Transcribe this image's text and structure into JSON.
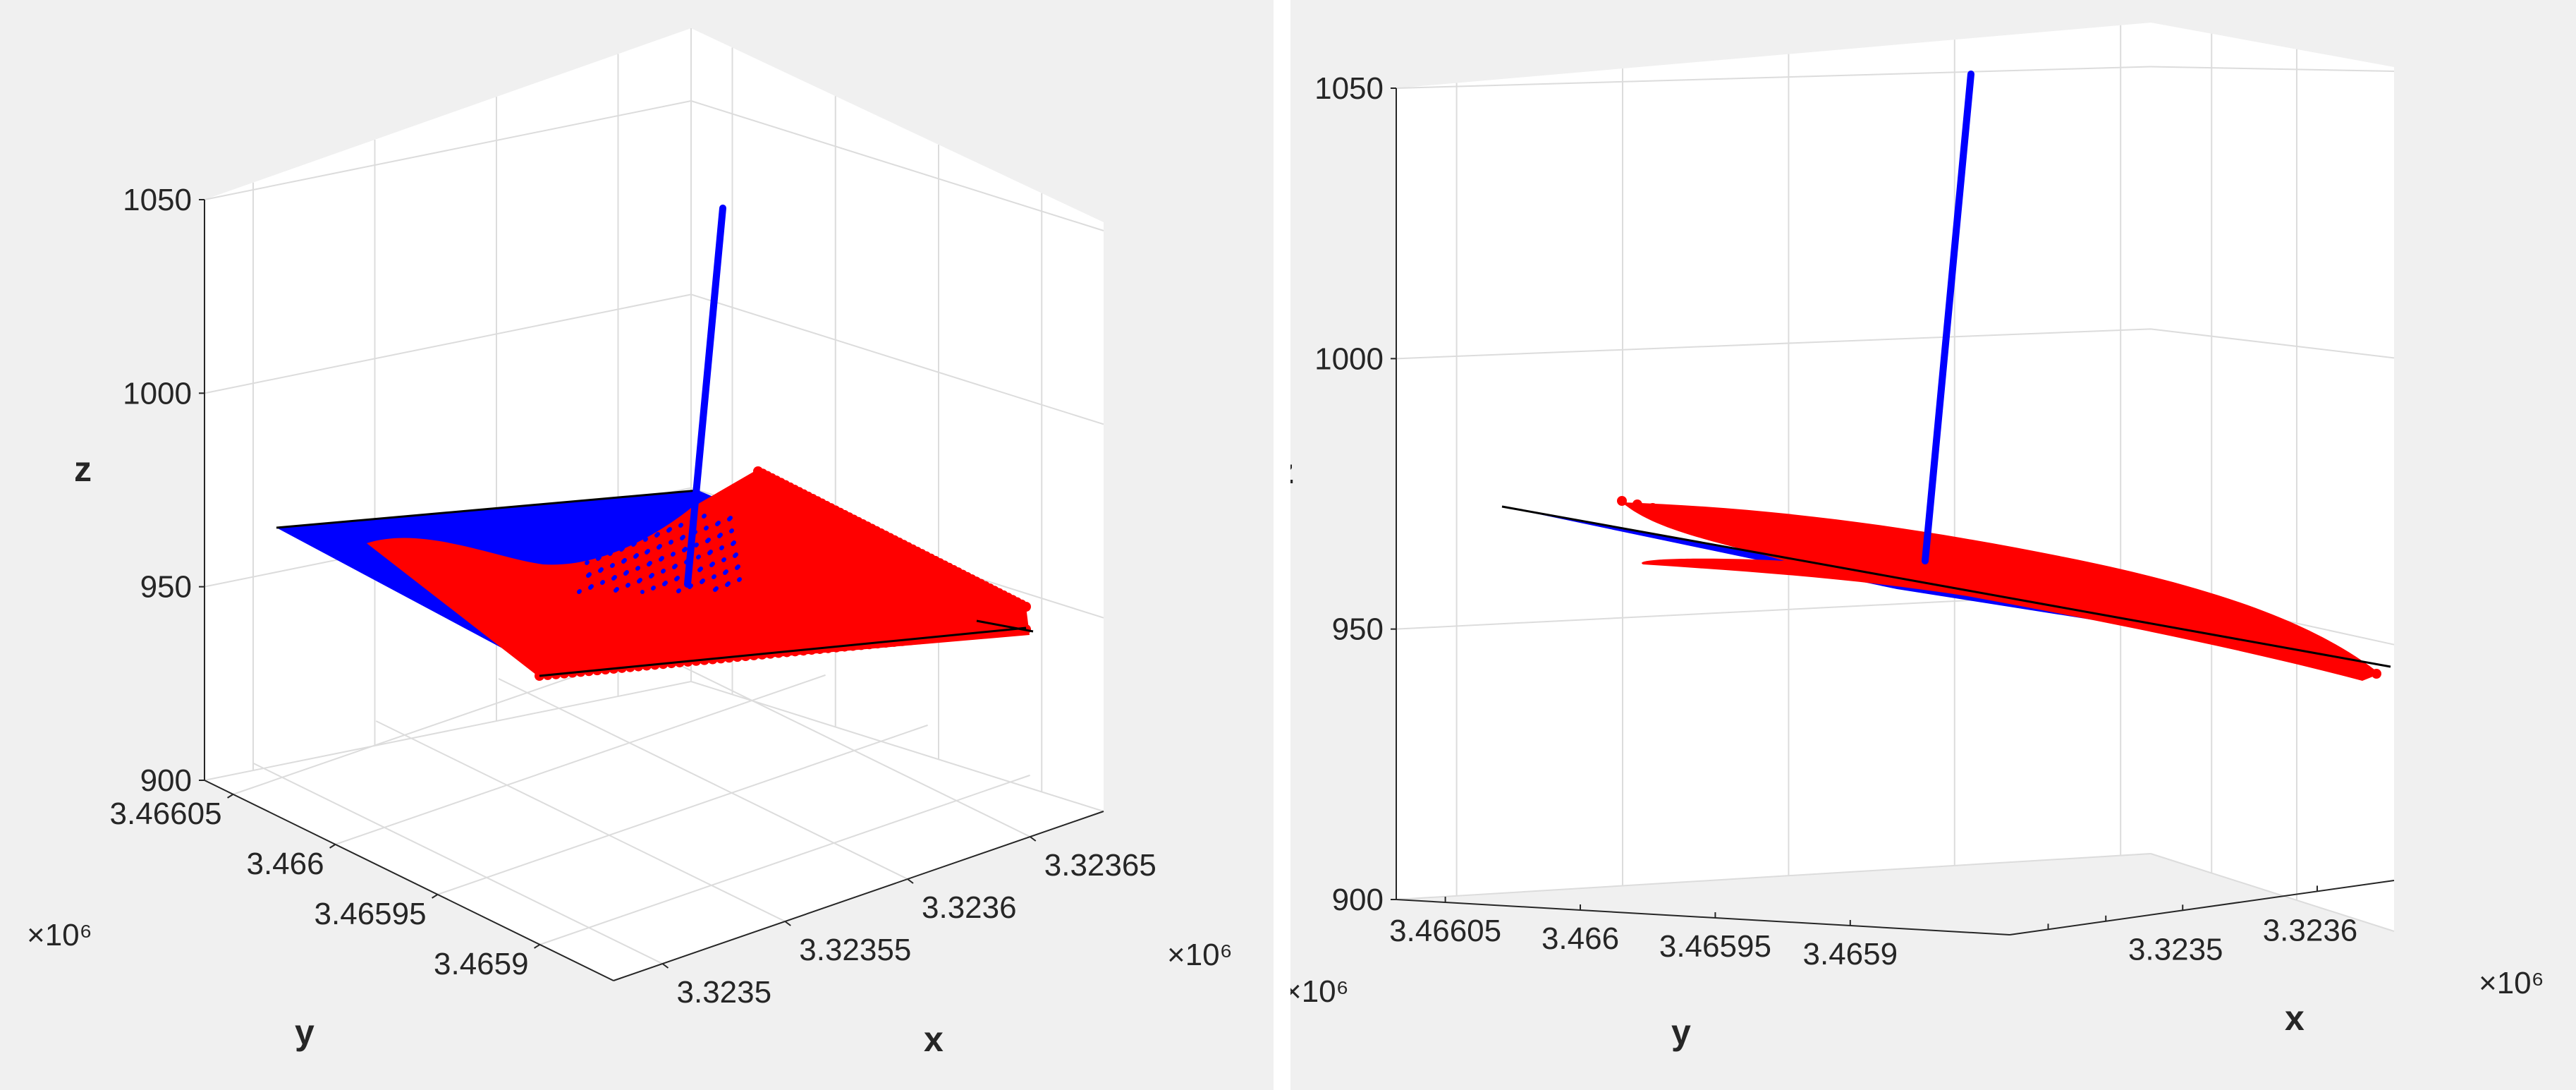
{
  "chart_data": [
    {
      "type": "scatter",
      "view": "oblique 3D view (azimuth ≈ -37.5°, elevation ≈ 30°)",
      "xlabel": "x",
      "ylabel": "y",
      "zlabel": "z",
      "x_ticks": [
        "3.3235",
        "3.32355",
        "3.3236",
        "3.32365"
      ],
      "x_multiplier": "×10^6",
      "y_ticks": [
        "3.4659",
        "3.46595",
        "3.466",
        "3.46605"
      ],
      "y_multiplier": "×10^6",
      "z_ticks": [
        "900",
        "950",
        "1000",
        "1050"
      ],
      "zlim": [
        900,
        1050
      ],
      "grid": true,
      "colors": {
        "red": "#ff0000",
        "blue": "#0000ff",
        "black": "#000000"
      },
      "series": [
        {
          "color": "blue",
          "kind": "fitted plane (surface points)",
          "z_range": [
            945,
            965
          ]
        },
        {
          "color": "red",
          "kind": "point cloud",
          "z_range": [
            945,
            965
          ]
        },
        {
          "color": "blue",
          "kind": "line (normal vector)",
          "z_start": 955,
          "z_end": 1030
        }
      ]
    },
    {
      "type": "scatter",
      "view": "low-elevation 3D view",
      "xlabel": "x",
      "ylabel": "y",
      "zlabel": "z",
      "x_ticks": [
        "3.3235",
        "3.3236"
      ],
      "x_multiplier": "×10^6",
      "y_ticks": [
        "3.4659",
        "3.46595",
        "3.466",
        "3.46605"
      ],
      "y_multiplier": "×10^6",
      "z_ticks": [
        "900",
        "950",
        "1000",
        "1050"
      ],
      "zlim": [
        900,
        1050
      ],
      "grid": true,
      "colors": {
        "red": "#ff0000",
        "blue": "#0000ff",
        "black": "#000000"
      },
      "series": [
        {
          "color": "blue",
          "kind": "fitted plane (surface points)",
          "z_range": [
            945,
            975
          ]
        },
        {
          "color": "red",
          "kind": "point cloud",
          "z_range": [
            945,
            975
          ]
        },
        {
          "color": "blue",
          "kind": "line (normal vector)",
          "z_start": 965,
          "z_end": 1050
        }
      ]
    }
  ]
}
